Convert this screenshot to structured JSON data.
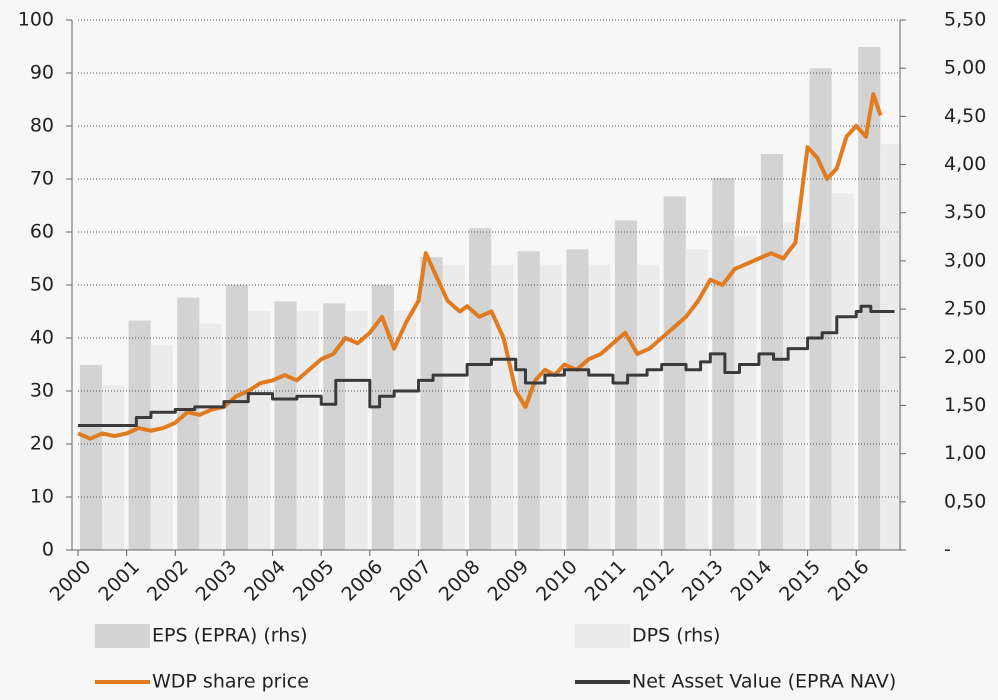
{
  "chart_data": {
    "type": "combo",
    "xlim": [
      2000,
      2016.9
    ],
    "xticks": [
      2000,
      2001,
      2002,
      2003,
      2004,
      2005,
      2006,
      2007,
      2008,
      2009,
      2010,
      2011,
      2012,
      2013,
      2014,
      2015,
      2016
    ],
    "ylim": [
      0,
      100
    ],
    "yticks": [
      0,
      10,
      20,
      30,
      40,
      50,
      60,
      70,
      80,
      90,
      100
    ],
    "y2lim": [
      0,
      5.5
    ],
    "y2ticks": [
      {
        "value": 0,
        "label": "-"
      },
      {
        "value": 0.5,
        "label": "0,50"
      },
      {
        "value": 1,
        "label": "1,00"
      },
      {
        "value": 1.5,
        "label": "1,50"
      },
      {
        "value": 2,
        "label": "2,00"
      },
      {
        "value": 2.5,
        "label": "2,50"
      },
      {
        "value": 3,
        "label": "3,00"
      },
      {
        "value": 3.5,
        "label": "3,50"
      },
      {
        "value": 4,
        "label": "4,00"
      },
      {
        "value": 4.5,
        "label": "4,50"
      },
      {
        "value": 5,
        "label": "5,00"
      },
      {
        "value": 5.5,
        "label": "5,50"
      }
    ],
    "grid": true,
    "series": [
      {
        "name": "EPS (EPRA) (rhs)",
        "type": "bar",
        "axis": "y2",
        "color": "#d3d3d3",
        "x": [
          2000,
          2001,
          2002,
          2003,
          2004,
          2005,
          2006,
          2007,
          2008,
          2009,
          2010,
          2011,
          2012,
          2013,
          2014,
          2015,
          2016
        ],
        "values": [
          1.92,
          2.38,
          2.62,
          2.75,
          2.58,
          2.56,
          2.75,
          3.04,
          3.34,
          3.1,
          3.12,
          3.42,
          3.67,
          3.86,
          4.11,
          5.0,
          5.22
        ]
      },
      {
        "name": "DPS (rhs)",
        "type": "bar",
        "axis": "y2",
        "color": "#ebebeb",
        "x": [
          2000,
          2001,
          2002,
          2003,
          2004,
          2005,
          2006,
          2007,
          2008,
          2009,
          2010,
          2011,
          2012,
          2013,
          2014,
          2015,
          2016
        ],
        "values": [
          1.71,
          2.13,
          2.35,
          2.48,
          2.48,
          2.48,
          2.48,
          2.96,
          2.96,
          2.96,
          2.96,
          2.96,
          3.12,
          3.26,
          3.4,
          3.7,
          4.21
        ]
      },
      {
        "name": "WDP share price",
        "type": "line",
        "color": "#e07b20",
        "x": [
          2000,
          2000.25,
          2000.5,
          2000.75,
          2001,
          2001.25,
          2001.5,
          2001.75,
          2002,
          2002.25,
          2002.5,
          2002.75,
          2003,
          2003.25,
          2003.5,
          2003.75,
          2004,
          2004.25,
          2004.5,
          2004.75,
          2005,
          2005.25,
          2005.5,
          2005.75,
          2006,
          2006.25,
          2006.5,
          2006.75,
          2007,
          2007.15,
          2007.35,
          2007.6,
          2007.85,
          2008,
          2008.25,
          2008.5,
          2008.75,
          2009,
          2009.2,
          2009.4,
          2009.6,
          2009.8,
          2010,
          2010.25,
          2010.5,
          2010.75,
          2011,
          2011.25,
          2011.5,
          2011.75,
          2012,
          2012.25,
          2012.5,
          2012.75,
          2013,
          2013.25,
          2013.5,
          2013.75,
          2014,
          2014.25,
          2014.5,
          2014.75,
          2015,
          2015.2,
          2015.4,
          2015.6,
          2015.8,
          2016,
          2016.2,
          2016.35,
          2016.5
        ],
        "values": [
          22,
          21,
          22,
          21.5,
          22,
          23,
          22.5,
          23,
          24,
          26,
          25.5,
          26.5,
          27,
          29,
          30,
          31.5,
          32,
          33,
          32,
          34,
          36,
          37,
          40,
          39,
          41,
          44,
          38,
          43,
          47,
          56,
          52,
          47,
          45,
          46,
          44,
          45,
          40,
          30,
          27,
          32,
          34,
          33,
          35,
          34,
          36,
          37,
          39,
          41,
          37,
          38,
          40,
          42,
          44,
          47,
          51,
          50,
          53,
          54,
          55,
          56,
          55,
          58,
          76,
          74,
          70,
          72,
          78,
          80,
          78,
          86,
          82
        ]
      },
      {
        "name": "Net Asset Value (EPRA NAV)",
        "type": "step",
        "color": "#3a3a3a",
        "x": [
          2000,
          2001.2,
          2001.5,
          2002,
          2002.4,
          2003,
          2003.5,
          2004,
          2004.5,
          2005,
          2005.3,
          2006,
          2006.2,
          2006.5,
          2007,
          2007.3,
          2008,
          2008.5,
          2009,
          2009.2,
          2009.6,
          2010,
          2010.5,
          2011,
          2011.3,
          2011.7,
          2012,
          2012.5,
          2012.8,
          2013,
          2013.3,
          2013.6,
          2014,
          2014.3,
          2014.6,
          2015,
          2015.3,
          2015.6,
          2016,
          2016.1,
          2016.3,
          2016.5
        ],
        "values": [
          23.5,
          25,
          26,
          26.5,
          27,
          28,
          29.5,
          28.5,
          29,
          27.5,
          32,
          27,
          29,
          30,
          32,
          33,
          35,
          36,
          34,
          31.5,
          33,
          34,
          33,
          31.5,
          33,
          34,
          35,
          34,
          35.5,
          37,
          33.5,
          35,
          37,
          36,
          38,
          40,
          41,
          44,
          45,
          46,
          45,
          45
        ]
      }
    ]
  }
}
